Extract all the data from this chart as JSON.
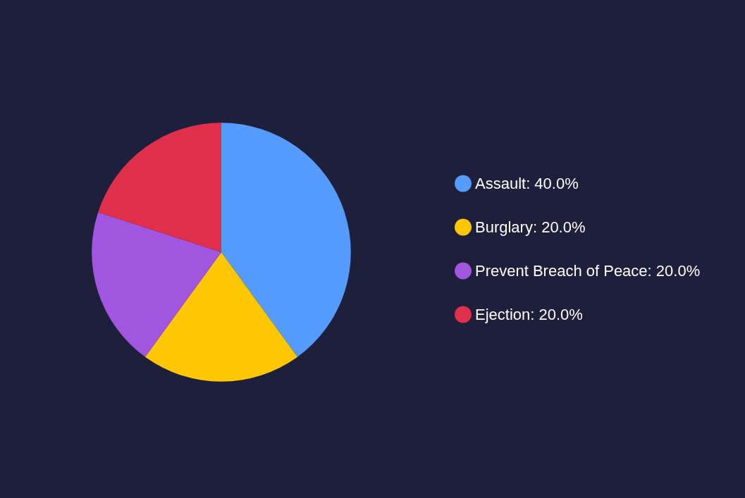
{
  "chart_data": {
    "type": "pie",
    "categories": [
      "Assault",
      "Burglary",
      "Prevent Breach of Peace",
      "Ejection"
    ],
    "values": [
      40,
      20,
      20,
      20
    ],
    "value_labels": [
      "40.0%",
      "20.0%",
      "20.0%",
      "20.0%"
    ],
    "colors": [
      "#559afd",
      "#ffc700",
      "#a256e0",
      "#e02f4a"
    ],
    "legend": "right"
  }
}
